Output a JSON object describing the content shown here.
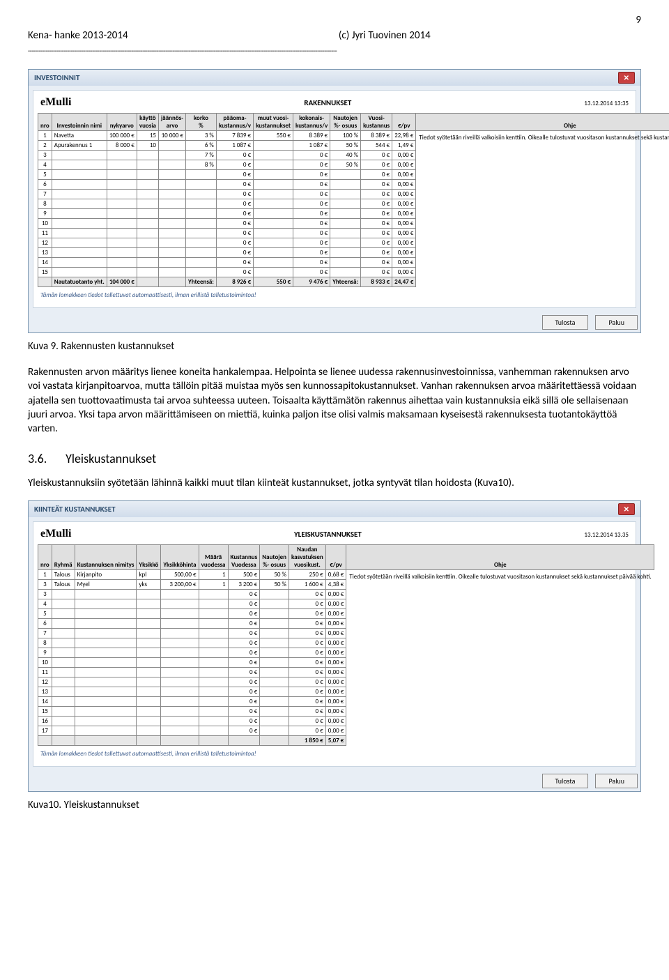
{
  "header": {
    "left": "Kena- hanke 2013-2014",
    "center": "(c) Jyri Tuovinen 2014",
    "pagenum": "9"
  },
  "win1": {
    "title": "INVESTOINNIT",
    "brand": "eMulli",
    "name": "RAKENNUKSET",
    "ts": "13.12.2014 13:35",
    "cols": [
      "nro",
      "Investoinnin nimi",
      "nykyarvo",
      "käyttö\nvuosia",
      "jäännös-\narvo",
      "korko\n%",
      "pääoma-\nkustannus/v",
      "muut vuosi-\nkustannukset",
      "kokonais-\nkustannus/v",
      "Nautojen\n%- osuus",
      "Vuosi-\nkustannus",
      "€/pv",
      "Ohje"
    ],
    "rows": [
      [
        "1",
        "Navetta",
        "100 000 €",
        "15",
        "10 000 €",
        "3 %",
        "7 839 €",
        "550 €",
        "8 389 €",
        "100 %",
        "8 389 €",
        "22,98 €"
      ],
      [
        "2",
        "Apurakennus 1",
        "8 000 €",
        "10",
        "",
        "6 %",
        "1 087 €",
        "",
        "1 087 €",
        "50 %",
        "544 €",
        "1,49 €"
      ],
      [
        "3",
        "",
        "",
        "",
        "",
        "7 %",
        "0 €",
        "",
        "0 €",
        "40 %",
        "0 €",
        "0,00 €"
      ],
      [
        "4",
        "",
        "",
        "",
        "",
        "8 %",
        "0 €",
        "",
        "0 €",
        "50 %",
        "0 €",
        "0,00 €"
      ],
      [
        "5",
        "",
        "",
        "",
        "",
        "",
        "0 €",
        "",
        "0 €",
        "",
        "0 €",
        "0,00 €"
      ],
      [
        "6",
        "",
        "",
        "",
        "",
        "",
        "0 €",
        "",
        "0 €",
        "",
        "0 €",
        "0,00 €"
      ],
      [
        "7",
        "",
        "",
        "",
        "",
        "",
        "0 €",
        "",
        "0 €",
        "",
        "0 €",
        "0,00 €"
      ],
      [
        "8",
        "",
        "",
        "",
        "",
        "",
        "0 €",
        "",
        "0 €",
        "",
        "0 €",
        "0,00 €"
      ],
      [
        "9",
        "",
        "",
        "",
        "",
        "",
        "0 €",
        "",
        "0 €",
        "",
        "0 €",
        "0,00 €"
      ],
      [
        "10",
        "",
        "",
        "",
        "",
        "",
        "0 €",
        "",
        "0 €",
        "",
        "0 €",
        "0,00 €"
      ],
      [
        "11",
        "",
        "",
        "",
        "",
        "",
        "0 €",
        "",
        "0 €",
        "",
        "0 €",
        "0,00 €"
      ],
      [
        "12",
        "",
        "",
        "",
        "",
        "",
        "0 €",
        "",
        "0 €",
        "",
        "0 €",
        "0,00 €"
      ],
      [
        "13",
        "",
        "",
        "",
        "",
        "",
        "0 €",
        "",
        "0 €",
        "",
        "0 €",
        "0,00 €"
      ],
      [
        "14",
        "",
        "",
        "",
        "",
        "",
        "0 €",
        "",
        "0 €",
        "",
        "0 €",
        "0,00 €"
      ],
      [
        "15",
        "",
        "",
        "",
        "",
        "",
        "0 €",
        "",
        "0 €",
        "",
        "0 €",
        "0,00 €"
      ]
    ],
    "totals": [
      "",
      "Nautatuotanto yht.",
      "104 000 €",
      "",
      "",
      "Yhteensä:",
      "8 926 €",
      "550 €",
      "9 476 €",
      "Yhteensä:",
      "8 933 €",
      "24,47 €"
    ],
    "help": "Tiedot syötetään riveillä valkoisiin kenttiin. Oikealle tulostuvat vuositason kustannukset sekä kustannukset päivää kohti.",
    "hint": "Tämän lomakkeen tiedot tallettuvat automaattisesti, ilman erillistä talletustoimintoa!",
    "btn_print": "Tulosta",
    "btn_back": "Paluu"
  },
  "caption1": "Kuva 9. Rakennusten kustannukset",
  "para1": "Rakennusten arvon määritys lienee koneita hankalempaa. Helpointa se lienee uudessa rakennusinvestoinnissa, vanhemman rakennuksen arvo voi vastata kirjanpitoarvoa, mutta tällöin pitää muistaa myös sen kunnossapitokustannukset. Vanhan rakennuksen arvoa määritettäessä voidaan ajatella sen tuottovaatimusta tai arvoa suhteessa uuteen. Toisaalta käyttämätön rakennus aihettaa vain kustannuksia eikä sillä ole sellaisenaan juuri arvoa. Yksi tapa arvon määrittämiseen on miettiä, kuinka paljon itse olisi valmis maksamaan kyseisestä rakennuksesta tuotantokäyttöä varten.",
  "section": {
    "num": "3.6.",
    "title": "Yleiskustannukset"
  },
  "para2": "Yleiskustannuksiin syötetään lähinnä kaikki muut tilan kiinteät kustannukset, jotka syntyvät tilan hoidosta (Kuva10).",
  "win2": {
    "title": "KIINTEÄT KUSTANNUKSET",
    "brand": "eMulli",
    "name": "YLEISKUSTANNUKSET",
    "ts": "13.12.2014 13.35",
    "cols": [
      "nro",
      "Ryhmä",
      "Kustannuksen nimitys",
      "Yksikkö",
      "Yksikköhinta",
      "Määrä\nvuodessa",
      "Kustannus\nVuodessa",
      "Nautojen\n%- osuus",
      "Naudan\nkasvatuksen\nvuosikust.",
      "€/pv",
      "Ohje"
    ],
    "rows": [
      [
        "1",
        "Talous",
        "Kirjanpito",
        "kpl",
        "500,00 €",
        "1",
        "500 €",
        "50 %",
        "250 €",
        "0,68 €"
      ],
      [
        "3",
        "Talous",
        "Myel",
        "yks",
        "3 200,00 €",
        "1",
        "3 200 €",
        "50 %",
        "1 600 €",
        "4,38 €"
      ],
      [
        "3",
        "",
        "",
        "",
        "",
        "",
        "0 €",
        "",
        "0 €",
        "0,00 €"
      ],
      [
        "4",
        "",
        "",
        "",
        "",
        "",
        "0 €",
        "",
        "0 €",
        "0,00 €"
      ],
      [
        "5",
        "",
        "",
        "",
        "",
        "",
        "0 €",
        "",
        "0 €",
        "0,00 €"
      ],
      [
        "6",
        "",
        "",
        "",
        "",
        "",
        "0 €",
        "",
        "0 €",
        "0,00 €"
      ],
      [
        "7",
        "",
        "",
        "",
        "",
        "",
        "0 €",
        "",
        "0 €",
        "0,00 €"
      ],
      [
        "8",
        "",
        "",
        "",
        "",
        "",
        "0 €",
        "",
        "0 €",
        "0,00 €"
      ],
      [
        "9",
        "",
        "",
        "",
        "",
        "",
        "0 €",
        "",
        "0 €",
        "0,00 €"
      ],
      [
        "10",
        "",
        "",
        "",
        "",
        "",
        "0 €",
        "",
        "0 €",
        "0,00 €"
      ],
      [
        "11",
        "",
        "",
        "",
        "",
        "",
        "0 €",
        "",
        "0 €",
        "0,00 €"
      ],
      [
        "12",
        "",
        "",
        "",
        "",
        "",
        "0 €",
        "",
        "0 €",
        "0,00 €"
      ],
      [
        "13",
        "",
        "",
        "",
        "",
        "",
        "0 €",
        "",
        "0 €",
        "0,00 €"
      ],
      [
        "14",
        "",
        "",
        "",
        "",
        "",
        "0 €",
        "",
        "0 €",
        "0,00 €"
      ],
      [
        "15",
        "",
        "",
        "",
        "",
        "",
        "0 €",
        "",
        "0 €",
        "0,00 €"
      ],
      [
        "16",
        "",
        "",
        "",
        "",
        "",
        "0 €",
        "",
        "0 €",
        "0,00 €"
      ],
      [
        "17",
        "",
        "",
        "",
        "",
        "",
        "0 €",
        "",
        "0 €",
        "0,00 €"
      ]
    ],
    "totals": [
      "",
      "",
      "",
      "",
      "",
      "",
      "",
      "",
      "1 850 €",
      "5,07 €"
    ],
    "help": "Tiedot syötetään riveillä valkoisiin kenttiin. Oikealle tulostuvat vuositason kustannukset sekä kustannukset päivää kohti.",
    "hint": "Tämän lomakkeen tiedot tallettuvat automaattisesti, ilman erillistä talletustoimintoa!",
    "btn_print": "Tulosta",
    "btn_back": "Paluu"
  },
  "caption2": "Kuva10. Yleiskustannukset"
}
